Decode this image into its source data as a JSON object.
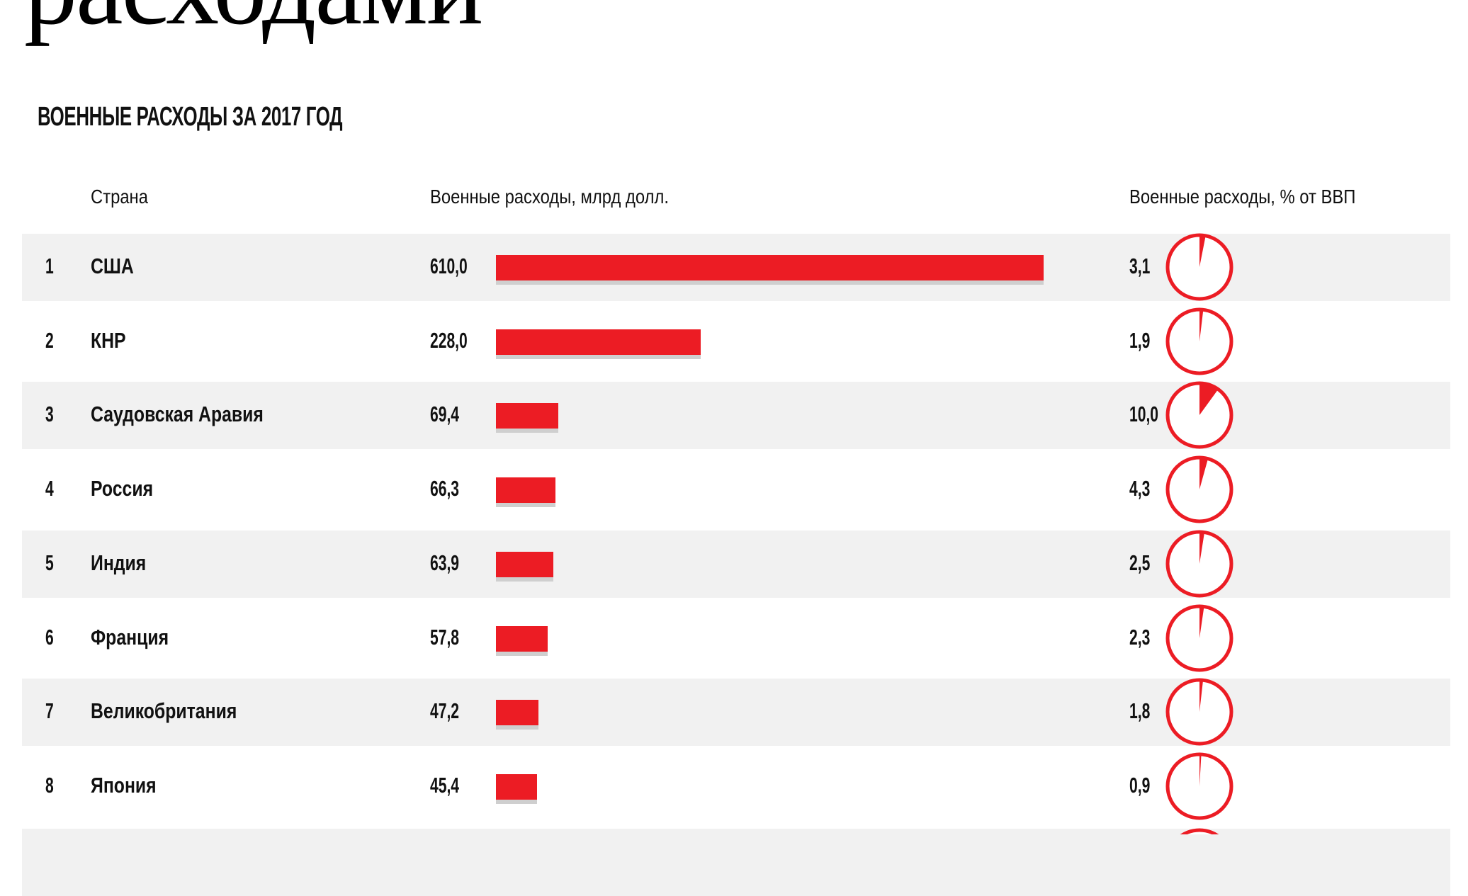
{
  "title": "расходами",
  "subtitle": "ВОЕННЫЕ РАСХОДЫ ЗА 2017 ГОД",
  "headers": {
    "country": "Страна",
    "spending": "Военные расходы, млрд долл.",
    "gdp": "Военные расходы, % от ВВП"
  },
  "colors": {
    "bar": "#ec1c24",
    "pie": "#ec1c24",
    "row_shade": "#f1f1f1"
  },
  "chart_data": {
    "type": "table",
    "columns": [
      "Страна",
      "Военные расходы, млрд долл.",
      "Военные расходы, % от ВВП"
    ],
    "rows": [
      {
        "rank": "1",
        "country": "США",
        "spending": 610.0,
        "spending_label": "610,0",
        "gdp": 3.1,
        "gdp_label": "3,1"
      },
      {
        "rank": "2",
        "country": "КНР",
        "spending": 228.0,
        "spending_label": "228,0",
        "gdp": 1.9,
        "gdp_label": "1,9"
      },
      {
        "rank": "3",
        "country": "Саудовская Аравия",
        "spending": 69.4,
        "spending_label": "69,4",
        "gdp": 10.0,
        "gdp_label": "10,0"
      },
      {
        "rank": "4",
        "country": "Россия",
        "spending": 66.3,
        "spending_label": "66,3",
        "gdp": 4.3,
        "gdp_label": "4,3"
      },
      {
        "rank": "5",
        "country": "Индия",
        "spending": 63.9,
        "spending_label": "63,9",
        "gdp": 2.5,
        "gdp_label": "2,5"
      },
      {
        "rank": "6",
        "country": "Франция",
        "spending": 57.8,
        "spending_label": "57,8",
        "gdp": 2.3,
        "gdp_label": "2,3"
      },
      {
        "rank": "7",
        "country": "Великобритания",
        "spending": 47.2,
        "spending_label": "47,2",
        "gdp": 1.8,
        "gdp_label": "1,8"
      },
      {
        "rank": "8",
        "country": "Япония",
        "spending": 45.4,
        "spending_label": "45,4",
        "gdp": 0.9,
        "gdp_label": "0,9"
      }
    ]
  }
}
